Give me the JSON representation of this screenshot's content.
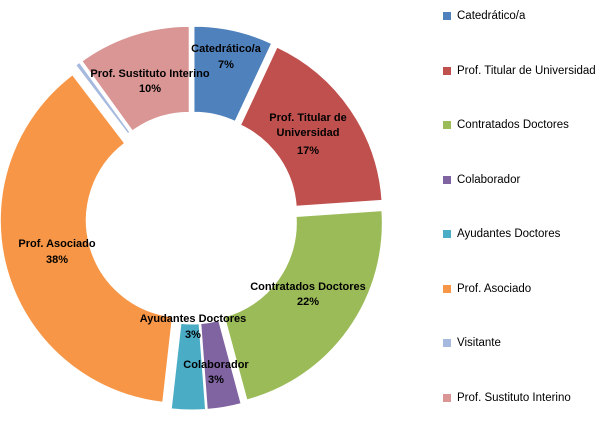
{
  "chart_data": {
    "type": "pie",
    "title": "",
    "donut": true,
    "categories": [
      "Catedrático/a",
      "Prof. Titular de Universidad",
      "Contratados Doctores",
      "Colaborador",
      "Ayudantes Doctores",
      "Prof. Asociado",
      "Visitante",
      "Prof. Sustituto Interino"
    ],
    "values": [
      7,
      17,
      22,
      3,
      3,
      38,
      0.4,
      10
    ],
    "value_labels": [
      "7%",
      "17%",
      "22%",
      "3%",
      "3%",
      "38%",
      "",
      "10%"
    ],
    "colors": [
      "#4F81BD",
      "#C0504D",
      "#9BBB59",
      "#8064A2",
      "#4BACC6",
      "#F79646",
      "#A6B9DF",
      "#D99694"
    ],
    "legend_placement": "right"
  }
}
